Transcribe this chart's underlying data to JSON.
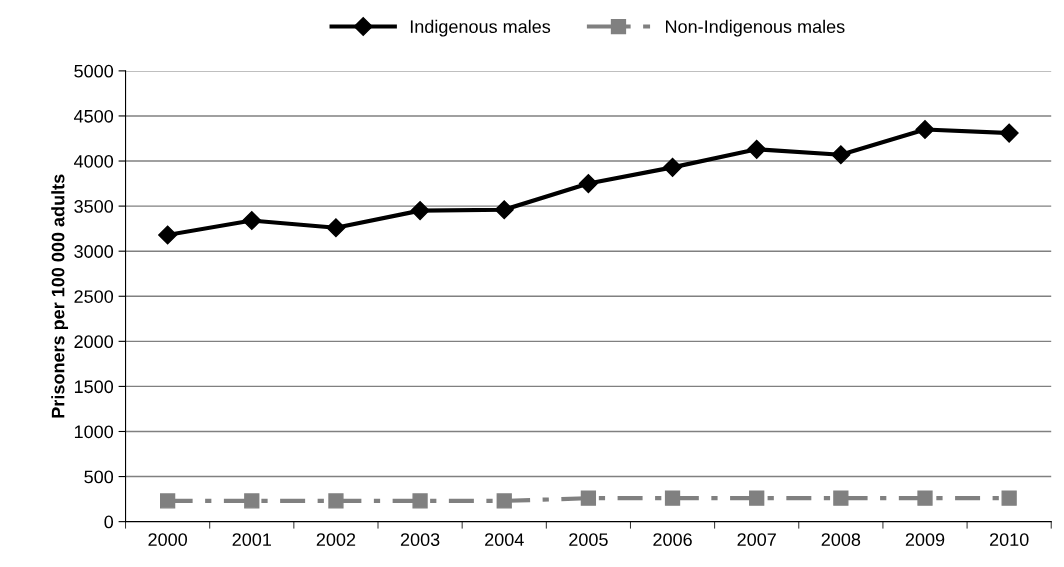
{
  "chart_data": {
    "type": "line",
    "ylabel": "Prisoners per 100 000 adults",
    "categories": [
      "2000",
      "2001",
      "2002",
      "2003",
      "2004",
      "2005",
      "2006",
      "2007",
      "2008",
      "2009",
      "2010"
    ],
    "series": [
      {
        "name": "Indigenous males",
        "color": "#000000",
        "marker": "diamond",
        "line_style": "solid",
        "values": [
          3180,
          3340,
          3260,
          3450,
          3460,
          3750,
          3930,
          4130,
          4070,
          4350,
          4310
        ]
      },
      {
        "name": "Non-Indigenous males",
        "color": "#808080",
        "marker": "square",
        "line_style": "dashed",
        "values": [
          230,
          230,
          230,
          230,
          230,
          260,
          260,
          260,
          260,
          260,
          260
        ]
      }
    ],
    "ylim": [
      0,
      5000
    ],
    "yticks": [
      0,
      500,
      1000,
      1500,
      2000,
      2500,
      3000,
      3500,
      4000,
      4500,
      5000
    ],
    "grid": "y",
    "legend": "top"
  }
}
